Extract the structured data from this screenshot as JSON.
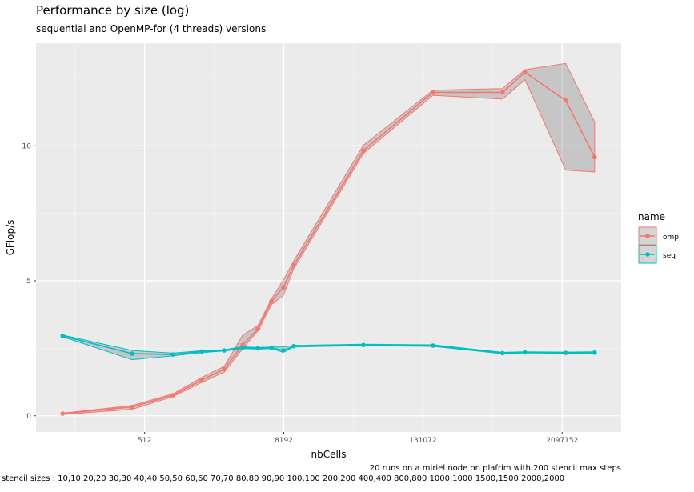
{
  "chart_data": {
    "type": "line",
    "title": "Performance by size (log)",
    "subtitle": "sequential and OpenMP-for (4 threads) versions",
    "xlabel": "nbCells",
    "ylabel": "GFlop/s",
    "x_scale": "log2",
    "x_ticks": [
      "512",
      "8192",
      "131072",
      "2097152"
    ],
    "y_ticks": [
      "0",
      "5",
      "10"
    ],
    "ylim": [
      -0.6,
      13.8
    ],
    "grid": true,
    "legend": {
      "title": "name",
      "position": "right",
      "entries": [
        "omp",
        "seq"
      ]
    },
    "series": [
      {
        "name": "omp",
        "color": "#F8766D",
        "x": [
          100,
          400,
          900,
          1600,
          2500,
          3600,
          4900,
          6400,
          8100,
          10000,
          40000,
          160000,
          640000,
          1000000,
          2250000,
          4000000
        ],
        "y": [
          0.08,
          0.33,
          0.76,
          1.33,
          1.73,
          2.62,
          3.22,
          4.24,
          4.75,
          5.58,
          9.83,
          11.98,
          11.98,
          12.72,
          11.68,
          9.58
        ],
        "ymin": [
          0.05,
          0.24,
          0.71,
          1.24,
          1.62,
          2.48,
          3.15,
          4.12,
          4.45,
          5.45,
          9.72,
          11.87,
          11.73,
          12.45,
          9.1,
          9.03
        ],
        "ymax": [
          0.1,
          0.38,
          0.81,
          1.42,
          1.83,
          2.98,
          3.35,
          4.32,
          5.02,
          5.74,
          10.02,
          12.06,
          12.12,
          12.82,
          13.05,
          10.88
        ]
      },
      {
        "name": "seq",
        "color": "#00BFC4",
        "x": [
          100,
          400,
          900,
          1600,
          2500,
          3600,
          4900,
          6400,
          8100,
          10000,
          40000,
          160000,
          640000,
          1000000,
          2250000,
          4000000
        ],
        "y": [
          2.96,
          2.3,
          2.27,
          2.38,
          2.42,
          2.52,
          2.5,
          2.52,
          2.42,
          2.58,
          2.62,
          2.6,
          2.32,
          2.35,
          2.33,
          2.34
        ],
        "ymin": [
          2.93,
          2.08,
          2.22,
          2.34,
          2.4,
          2.49,
          2.47,
          2.49,
          2.35,
          2.55,
          2.6,
          2.57,
          2.3,
          2.33,
          2.31,
          2.32
        ],
        "ymax": [
          2.99,
          2.42,
          2.32,
          2.41,
          2.45,
          2.56,
          2.53,
          2.55,
          2.55,
          2.61,
          2.65,
          2.63,
          2.35,
          2.37,
          2.36,
          2.37
        ]
      }
    ],
    "caption": [
      "20 runs on a miriel node on plafrim with 200 stencil max steps",
      "stencil sizes : 10,10 20,20 30,30 40,40 50,50 60,60 70,70 80,80 90,90 100,100 200,200 400,400 800,800 1000,1000 1500,1500 2000,2000"
    ]
  }
}
